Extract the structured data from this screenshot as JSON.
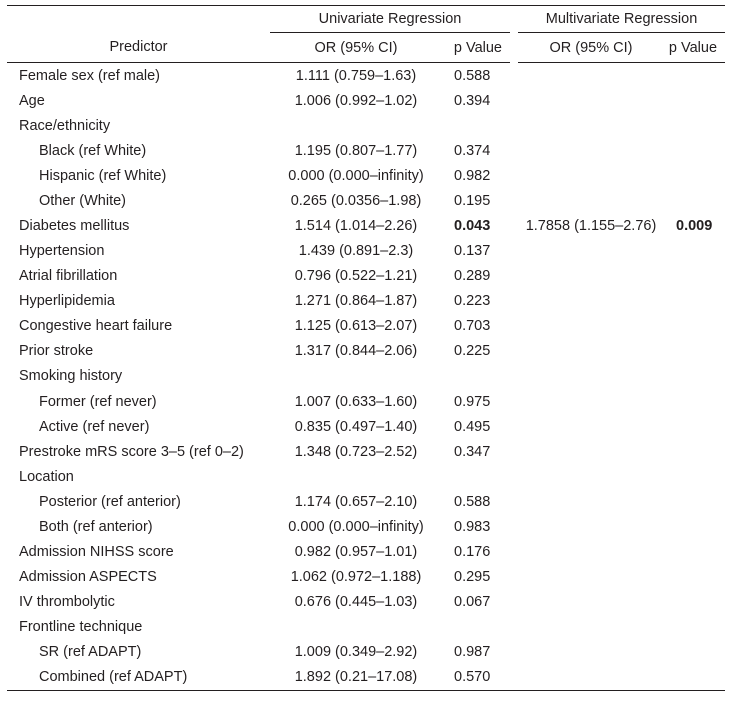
{
  "header": {
    "univariate_title": "Univariate Regression",
    "multivariate_title": "Multivariate Regression",
    "predictor": "Predictor",
    "uni_or": "OR (95% CI)",
    "uni_p": "p Value",
    "multi_or": "OR (95% CI)",
    "multi_p": "p Value"
  },
  "rows": [
    {
      "predictor": "Female sex (ref male)",
      "or": "1.111 (0.759–1.63)",
      "p": "0.588",
      "indent": false
    },
    {
      "predictor": "Age",
      "or": "1.006 (0.992–1.02)",
      "p": "0.394",
      "indent": false
    },
    {
      "predictor": "Race/ethnicity",
      "or": "",
      "p": "",
      "indent": false
    },
    {
      "predictor": "Black (ref White)",
      "or": "1.195 (0.807–1.77)",
      "p": "0.374",
      "indent": true
    },
    {
      "predictor": "Hispanic (ref White)",
      "or": "0.000 (0.000–infinity)",
      "p": "0.982",
      "indent": true
    },
    {
      "predictor": "Other (White)",
      "or": "0.265 (0.0356–1.98)",
      "p": "0.195",
      "indent": true
    },
    {
      "predictor": "Diabetes mellitus",
      "or": "1.514 (1.014–2.26)",
      "p": "0.043",
      "p_bold": true,
      "mor": "1.7858 (1.155–2.76)",
      "mp": "0.009",
      "mp_bold": true,
      "indent": false
    },
    {
      "predictor": "Hypertension",
      "or": "1.439 (0.891–2.3)",
      "p": "0.137",
      "indent": false
    },
    {
      "predictor": "Atrial fibrillation",
      "or": "0.796 (0.522–1.21)",
      "p": "0.289",
      "indent": false
    },
    {
      "predictor": "Hyperlipidemia",
      "or": "1.271 (0.864–1.87)",
      "p": "0.223",
      "indent": false
    },
    {
      "predictor": "Congestive heart failure",
      "or": "1.125 (0.613–2.07)",
      "p": "0.703",
      "indent": false
    },
    {
      "predictor": "Prior stroke",
      "or": "1.317 (0.844–2.06)",
      "p": "0.225",
      "indent": false
    },
    {
      "predictor": "Smoking history",
      "or": "",
      "p": "",
      "indent": false
    },
    {
      "predictor": "Former (ref never)",
      "or": "1.007 (0.633–1.60)",
      "p": "0.975",
      "indent": true
    },
    {
      "predictor": "Active (ref never)",
      "or": "0.835 (0.497–1.40)",
      "p": "0.495",
      "indent": true
    },
    {
      "predictor": "Prestroke mRS score 3–5 (ref 0–2)",
      "or": "1.348 (0.723–2.52)",
      "p": "0.347",
      "indent": false
    },
    {
      "predictor": "Location",
      "or": "",
      "p": "",
      "indent": false
    },
    {
      "predictor": "Posterior (ref anterior)",
      "or": "1.174 (0.657–2.10)",
      "p": "0.588",
      "indent": true
    },
    {
      "predictor": "Both (ref anterior)",
      "or": "0.000 (0.000–infinity)",
      "p": "0.983",
      "indent": true
    },
    {
      "predictor": "Admission NIHSS score",
      "or": "0.982 (0.957–1.01)",
      "p": "0.176",
      "indent": false
    },
    {
      "predictor": "Admission ASPECTS",
      "or": "1.062 (0.972–1.188)",
      "p": "0.295",
      "indent": false
    },
    {
      "predictor": "IV thrombolytic",
      "or": "0.676 (0.445–1.03)",
      "p": "0.067",
      "indent": false
    },
    {
      "predictor": "Frontline technique",
      "or": "",
      "p": "",
      "indent": false
    },
    {
      "predictor": "SR (ref ADAPT)",
      "or": "1.009 (0.349–2.92)",
      "p": "0.987",
      "indent": true
    },
    {
      "predictor": "Combined (ref ADAPT)",
      "or": "1.892 (0.21–17.08)",
      "p": "0.570",
      "indent": true
    }
  ]
}
